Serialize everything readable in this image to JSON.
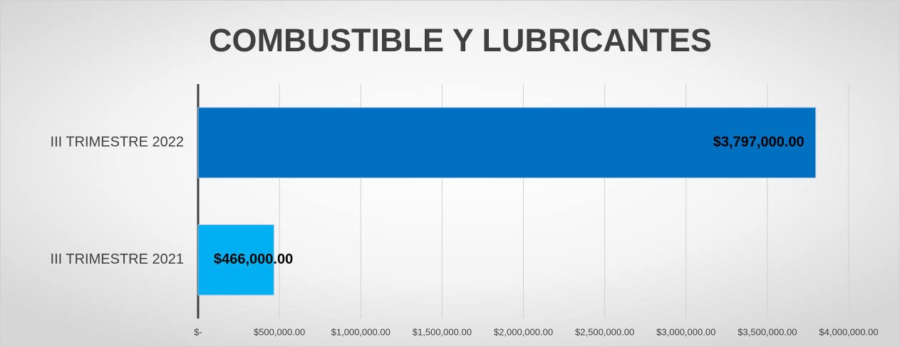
{
  "chart_data": {
    "type": "hbar",
    "title": "COMBUSTIBLE Y LUBRICANTES",
    "categories": [
      "III TRIMESTRE 2022",
      "III TRIMESTRE 2021"
    ],
    "values": [
      3797000,
      466000
    ],
    "value_labels": [
      "$3,797,000.00",
      "$466,000.00"
    ],
    "colors": [
      "#0070c0",
      "#00b0f0"
    ],
    "xlim": [
      0,
      4000000
    ],
    "xticks": [
      {
        "value": 0,
        "label": "$-"
      },
      {
        "value": 500000,
        "label": "$500,000.00"
      },
      {
        "value": 1000000,
        "label": "$1,000,000.00"
      },
      {
        "value": 1500000,
        "label": "$1,500,000.00"
      },
      {
        "value": 2000000,
        "label": "$2,000,000.00"
      },
      {
        "value": 2500000,
        "label": "$2,500,000.00"
      },
      {
        "value": 3000000,
        "label": "$3,000,000.00"
      },
      {
        "value": 3500000,
        "label": "$3,500,000.00"
      },
      {
        "value": 4000000,
        "label": "$4,000,000.00"
      }
    ],
    "grid": true
  }
}
